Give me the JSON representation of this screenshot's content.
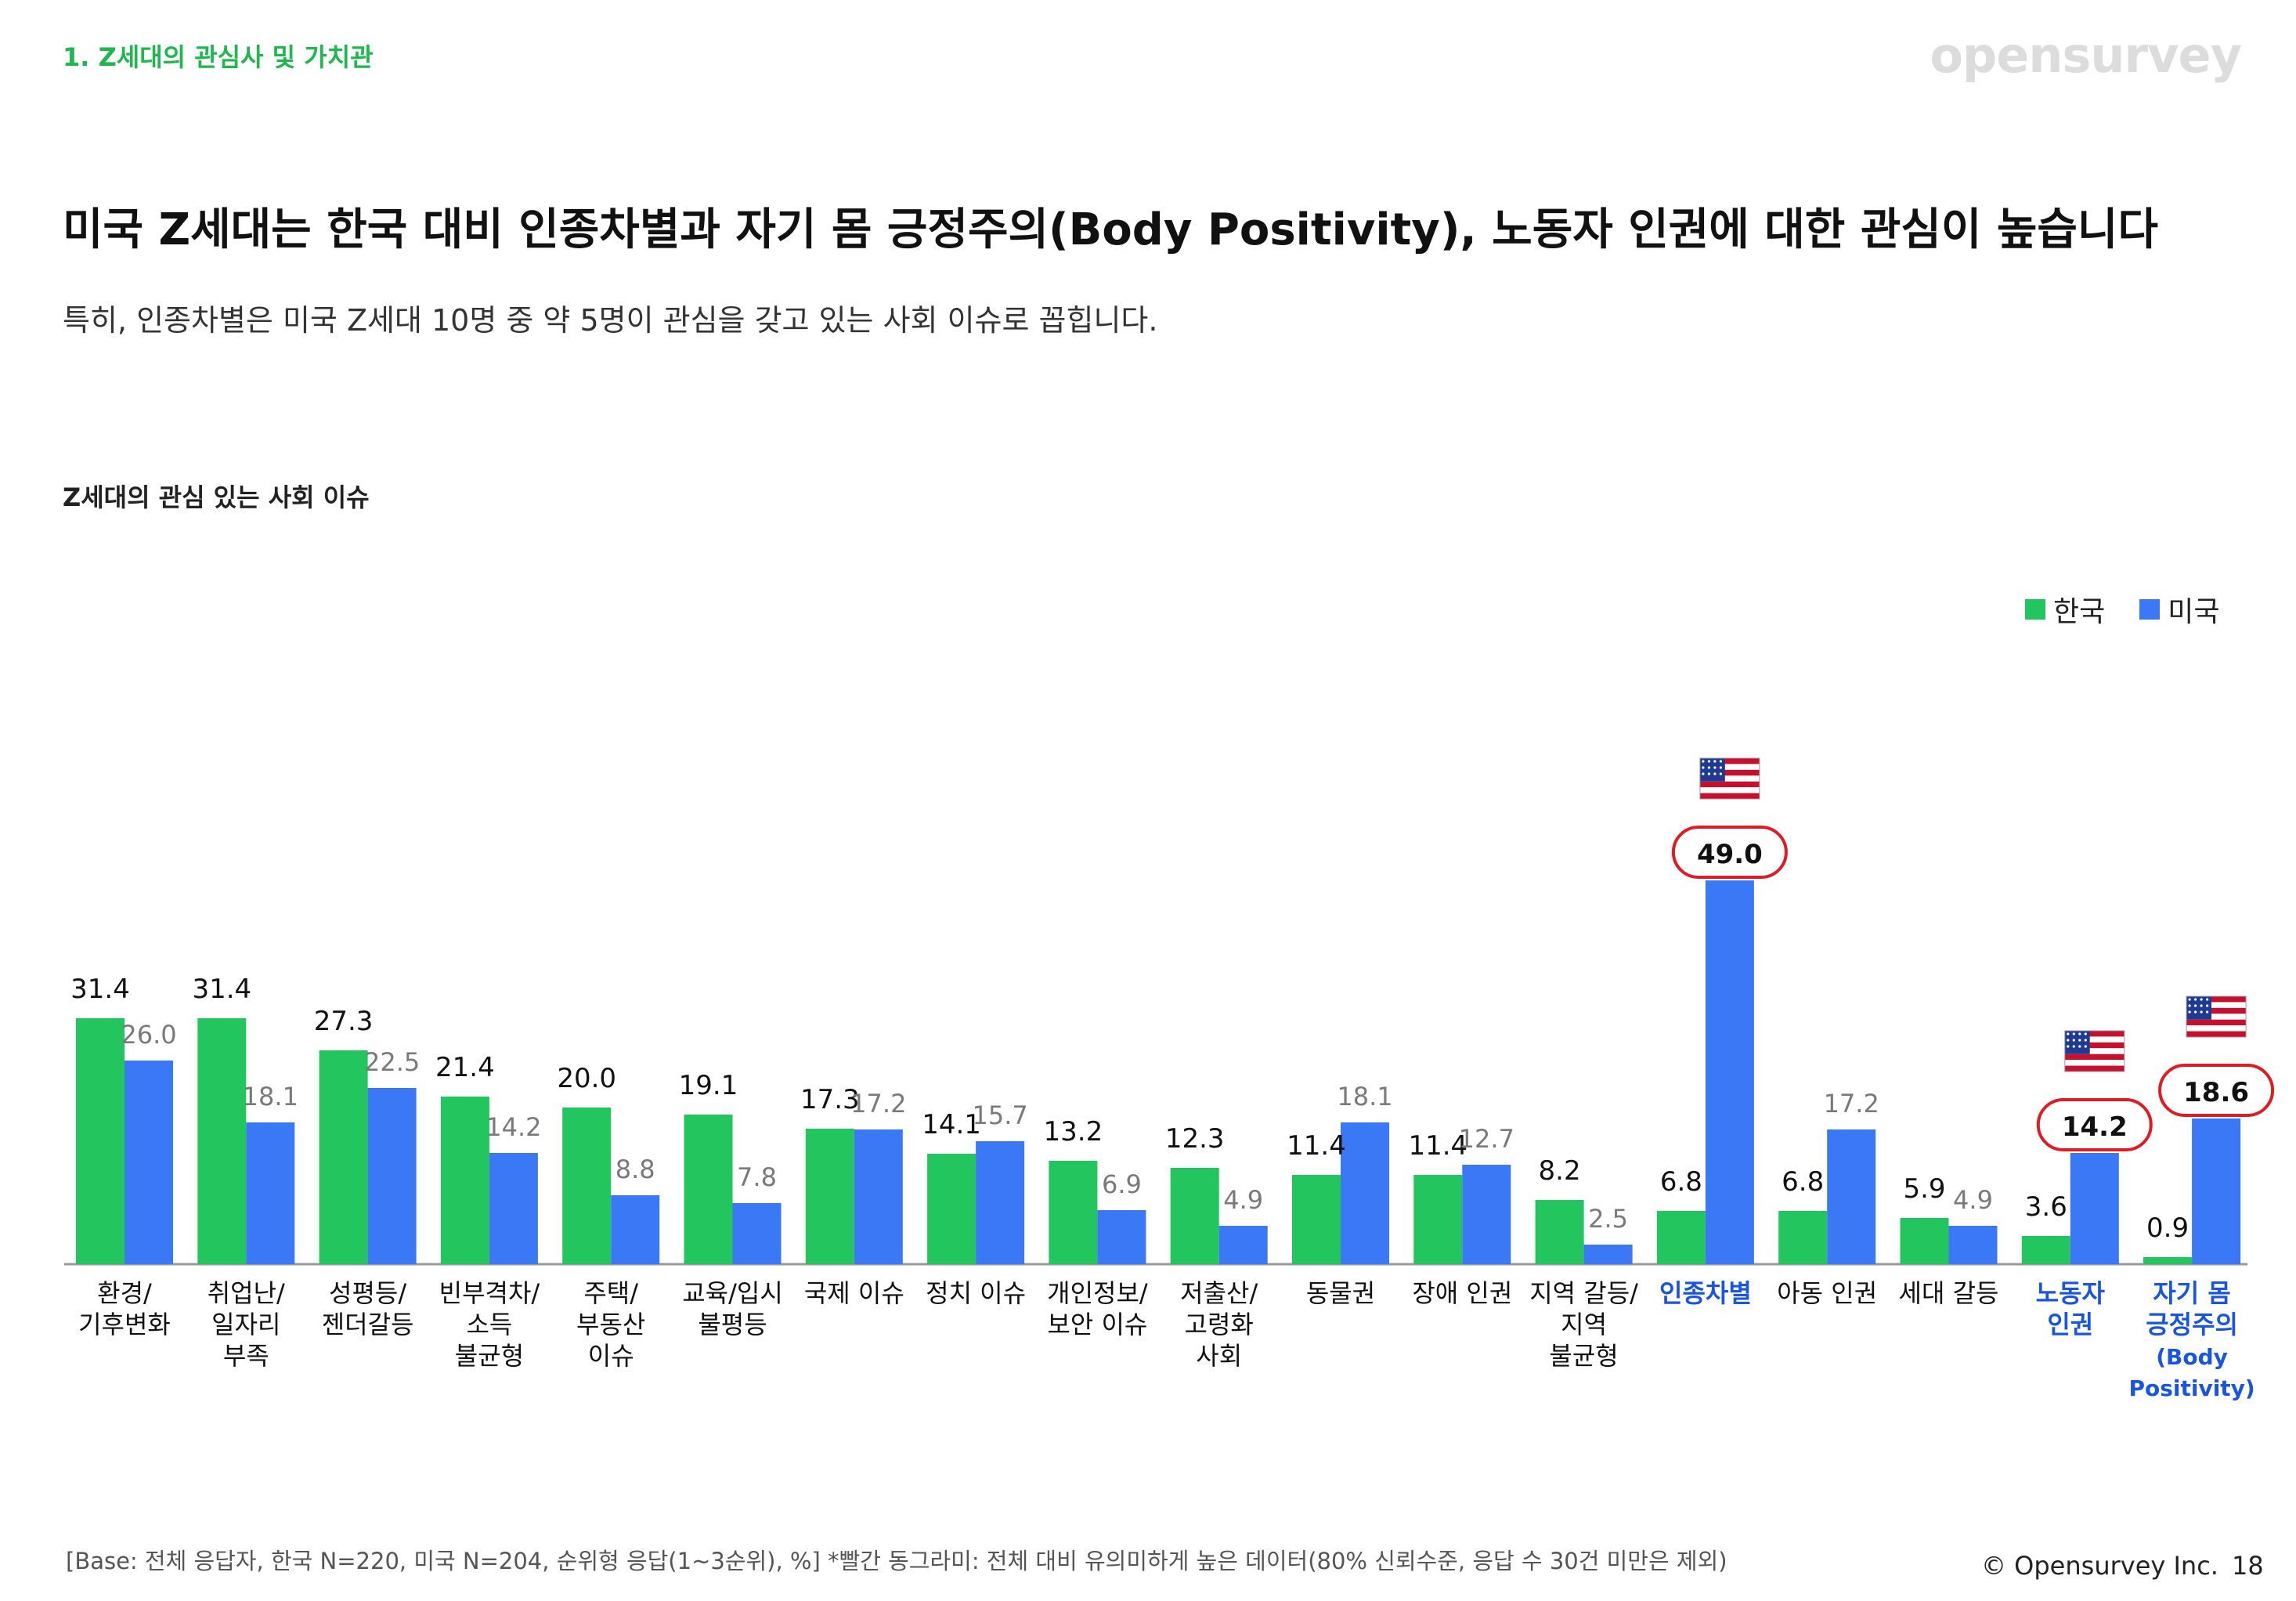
{
  "header": {
    "section_tag": "1. Z세대의 관심사 및 가치관",
    "brand": "opensurvey"
  },
  "headline": "미국 Z세대는 한국 대비 인종차별과 자기 몸 긍정주의(Body Positivity), 노동자 인권에 대한 관심이 높습니다",
  "subheadline": "특히, 인종차별은 미국 Z세대 10명 중 약 5명이 관심을 갖고 있는 사회 이슈로 꼽힙니다.",
  "chart_title": "Z세대의 관심 있는 사회 이슈",
  "legend": [
    {
      "label": "한국",
      "color": "#22c55e"
    },
    {
      "label": "미국",
      "color": "#3b78f6"
    }
  ],
  "colors": {
    "korea": "#22c55e",
    "usa": "#3b78f6",
    "highlight_text": "#1a55e0",
    "circle": "#e01b24",
    "axis": "#9a9a9a",
    "usa_label_gray": "#7a7a7a"
  },
  "chart_data": {
    "type": "bar",
    "title": "Z세대의 관심 있는 사회 이슈",
    "xlabel": "",
    "ylabel": "%",
    "ylim": [
      0,
      55
    ],
    "categories": [
      [
        "환경/",
        "기후변화"
      ],
      [
        "취업난/",
        "일자리",
        "부족"
      ],
      [
        "성평등/",
        "젠더갈등"
      ],
      [
        "빈부격차/",
        "소득",
        "불균형"
      ],
      [
        "주택/",
        "부동산",
        "이슈"
      ],
      [
        "교육/입시",
        "불평등"
      ],
      [
        "국제 이슈"
      ],
      [
        "정치 이슈"
      ],
      [
        "개인정보/",
        "보안 이슈"
      ],
      [
        "저출산/",
        "고령화",
        "사회"
      ],
      [
        "동물권"
      ],
      [
        "장애 인권"
      ],
      [
        "지역 갈등/",
        "지역",
        "불균형"
      ],
      [
        "인종차별"
      ],
      [
        "아동 인권"
      ],
      [
        "세대 갈등"
      ],
      [
        "노동자",
        "인권"
      ],
      [
        "자기 몸",
        "긍정주의",
        "(Body",
        "Positivity)"
      ]
    ],
    "series": [
      {
        "name": "한국",
        "values": [
          31.4,
          31.4,
          27.3,
          21.4,
          20.0,
          19.1,
          17.3,
          14.1,
          13.2,
          12.3,
          11.4,
          11.4,
          8.2,
          6.8,
          6.8,
          5.9,
          3.6,
          0.9
        ]
      },
      {
        "name": "미국",
        "values": [
          26.0,
          18.1,
          22.5,
          14.2,
          8.8,
          7.8,
          17.2,
          15.7,
          6.9,
          4.9,
          18.1,
          12.7,
          2.5,
          49.0,
          17.2,
          4.9,
          14.2,
          18.6
        ]
      }
    ],
    "highlighted_indices": [
      13,
      16,
      17
    ],
    "annotation": "빨간 동그라미: 전체 대비 유의미하게 높은 데이터"
  },
  "footer": {
    "footnote": "[Base: 전체 응답자, 한국 N=220, 미국 N=204, 순위형 응답(1~3순위), %] *빨간 동그라미: 전체 대비 유의미하게 높은 데이터(80% 신뢰수준, 응답 수 30건 미만은 제외)",
    "copyright": "© Opensurvey Inc.",
    "page_number": "18"
  }
}
